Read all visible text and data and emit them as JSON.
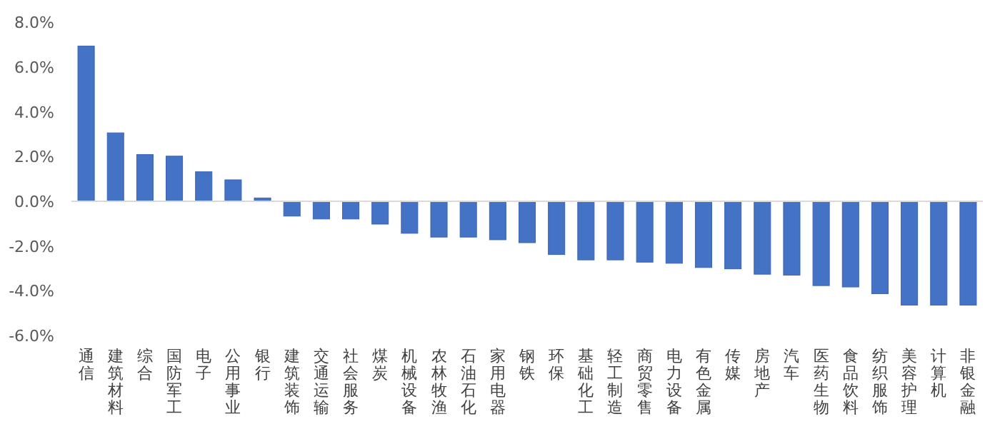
{
  "chart_data": {
    "type": "bar",
    "color": "#4472c4",
    "categories": [
      "通信",
      "建筑材料",
      "综合",
      "国防军工",
      "电子",
      "公用事业",
      "银行",
      "建筑装饰",
      "交通运输",
      "社会服务",
      "煤炭",
      "机械设备",
      "农林牧渔",
      "石油石化",
      "家用电器",
      "钢铁",
      "环保",
      "基础化工",
      "轻工制造",
      "商贸零售",
      "电力设备",
      "有色金属",
      "传媒",
      "房地产",
      "汽车",
      "医药生物",
      "食品饮料",
      "纺织服饰",
      "美容护理",
      "计算机",
      "非银金融"
    ],
    "values": [
      6.94,
      3.06,
      2.09,
      2.02,
      1.32,
      0.96,
      0.15,
      -0.66,
      -0.79,
      -0.79,
      -1.02,
      -1.43,
      -1.6,
      -1.6,
      -1.72,
      -1.85,
      -2.38,
      -2.62,
      -2.62,
      -2.72,
      -2.77,
      -2.96,
      -3.02,
      -3.26,
      -3.3,
      -3.77,
      -3.83,
      -4.13,
      -4.64,
      -4.64,
      -4.64
    ],
    "ylim": [
      -6,
      8
    ],
    "yticks": [
      {
        "value": 8,
        "label": "8.0%"
      },
      {
        "value": 6,
        "label": "6.0%"
      },
      {
        "value": 4,
        "label": "4.0%"
      },
      {
        "value": 2,
        "label": "2.0%"
      },
      {
        "value": 0,
        "label": "0.0%"
      },
      {
        "value": -2,
        "label": "-2.0%"
      },
      {
        "value": -4,
        "label": "-4.0%"
      },
      {
        "value": -6,
        "label": "-6.0%"
      }
    ]
  }
}
